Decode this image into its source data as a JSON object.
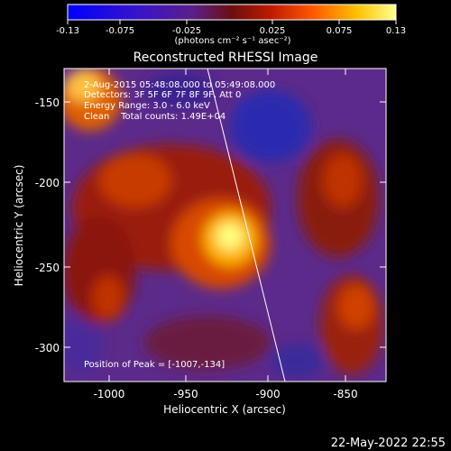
{
  "colorbar": {
    "ticks": [
      "-0.13",
      "-0.075",
      "-0.025",
      "0.025",
      "0.075",
      "0.13"
    ],
    "unit_label": "(photons cm⁻² s⁻¹ asec⁻²)"
  },
  "title": "Reconstructed RHESSI Image",
  "info_lines": [
    "2-Aug-2015 05:48:08.000 to 05:49:08.000",
    "Detectors: 3F 5F 6F 7F 8F 9F, Att 0",
    "Energy Range: 3.0 - 6.0 keV",
    "Clean    Total counts: 1.49E+04"
  ],
  "peak_text": "Position of Peak = [-1007,-134]",
  "axes": {
    "xlabel": "Heliocentric X (arcsec)",
    "ylabel": "Heliocentric Y (arcsec)",
    "xticks": [
      "-1000",
      "-950",
      "-900",
      "-850"
    ],
    "yticks": [
      "-150",
      "-200",
      "-250",
      "-300"
    ]
  },
  "footer_date": "22-May-2022 22:55"
}
